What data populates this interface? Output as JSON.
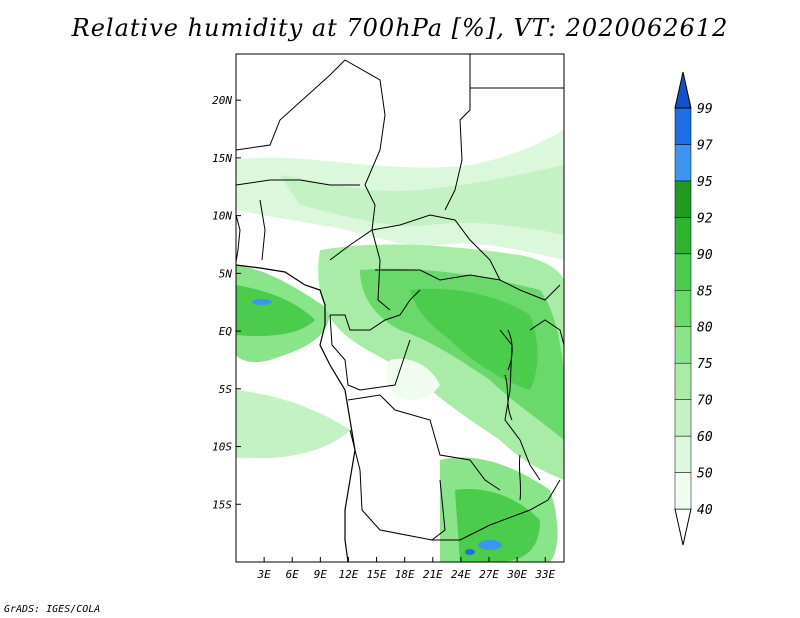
{
  "title": "Relative humidity at 700hPa [%], VT: 2020062612",
  "credit": "GrADS: IGES/COLA",
  "map": {
    "lon_range": [
      0,
      35
    ],
    "lat_range": [
      -20,
      24
    ],
    "lon_ticks": [
      {
        "value": 3,
        "label": "3E"
      },
      {
        "value": 6,
        "label": "6E"
      },
      {
        "value": 9,
        "label": "9E"
      },
      {
        "value": 12,
        "label": "12E"
      },
      {
        "value": 15,
        "label": "15E"
      },
      {
        "value": 18,
        "label": "18E"
      },
      {
        "value": 21,
        "label": "21E"
      },
      {
        "value": 24,
        "label": "24E"
      },
      {
        "value": 27,
        "label": "27E"
      },
      {
        "value": 30,
        "label": "30E"
      },
      {
        "value": 33,
        "label": "33E"
      }
    ],
    "lat_ticks": [
      {
        "value": 20,
        "label": "20N"
      },
      {
        "value": 15,
        "label": "15N"
      },
      {
        "value": 10,
        "label": "10N"
      },
      {
        "value": 5,
        "label": "5N"
      },
      {
        "value": 0,
        "label": "EQ"
      },
      {
        "value": -5,
        "label": "5S"
      },
      {
        "value": -10,
        "label": "10S"
      },
      {
        "value": -15,
        "label": "15S"
      }
    ]
  },
  "colorbar": {
    "levels": [
      "40",
      "50",
      "60",
      "70",
      "75",
      "80",
      "85",
      "90",
      "92",
      "95",
      "97",
      "99"
    ],
    "colors": [
      "#f0fcf0",
      "#dcf8dc",
      "#c4f2c4",
      "#a8eca8",
      "#8ae48a",
      "#6ad86a",
      "#4ccc4c",
      "#2eb42e",
      "#1e9a1e",
      "#3c96f0",
      "#1e6ee6",
      "#1450c8"
    ]
  }
}
